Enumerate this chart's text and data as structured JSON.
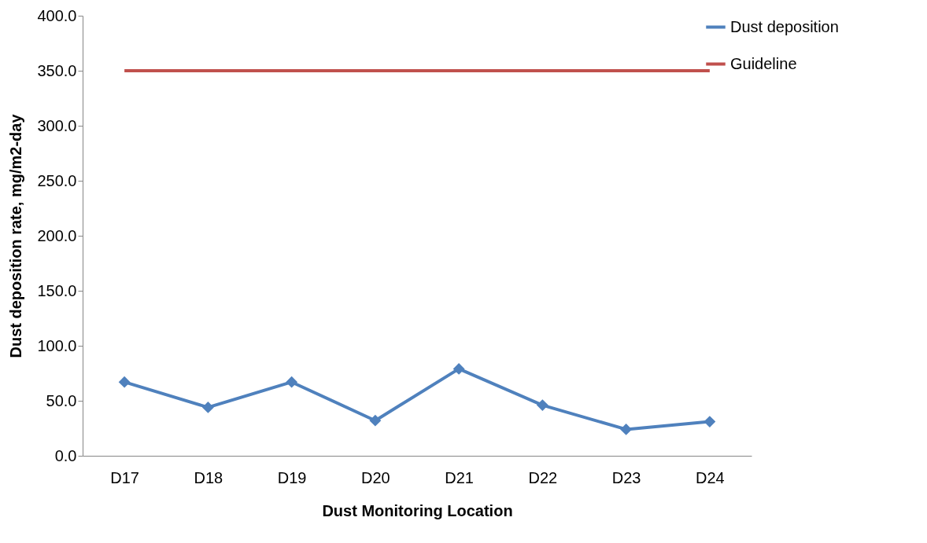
{
  "chart_data": {
    "type": "line",
    "xlabel": "Dust Monitoring Location",
    "ylabel": "Dust deposition rate, mg/m2-day",
    "categories": [
      "D17",
      "D18",
      "D19",
      "D20",
      "D21",
      "D22",
      "D23",
      "D24"
    ],
    "series": [
      {
        "name": "Dust deposition",
        "color": "#4f81bd",
        "marker": "diamond",
        "values": [
          67,
          44,
          67,
          32,
          79,
          46,
          24,
          31
        ]
      },
      {
        "name": "Guideline",
        "color": "#c0504d",
        "marker": "none",
        "values": [
          350,
          350,
          350,
          350,
          350,
          350,
          350,
          350
        ]
      }
    ],
    "ylim": [
      0,
      400
    ],
    "yticks": [
      {
        "value": 0,
        "label": "0.0"
      },
      {
        "value": 50,
        "label": "50.0"
      },
      {
        "value": 100,
        "label": "100.0"
      },
      {
        "value": 150,
        "label": "150.0"
      },
      {
        "value": 200,
        "label": "200.0"
      },
      {
        "value": 250,
        "label": "250.0"
      },
      {
        "value": 300,
        "label": "300.0"
      },
      {
        "value": 350,
        "label": "350.0"
      },
      {
        "value": 400,
        "label": "400.0"
      }
    ],
    "grid": false,
    "legend": "right"
  }
}
